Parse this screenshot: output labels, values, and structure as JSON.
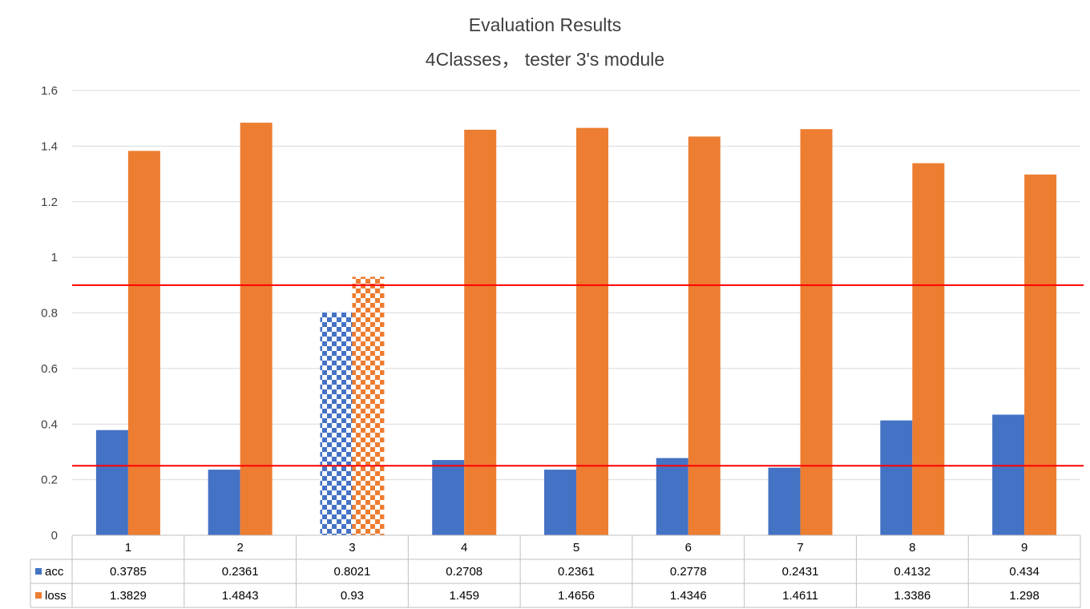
{
  "chart_data": {
    "type": "bar",
    "title": "Evaluation Results",
    "subtitle": "4Classes，  tester 3's module",
    "categories": [
      "1",
      "2",
      "3",
      "4",
      "5",
      "6",
      "7",
      "8",
      "9"
    ],
    "series": [
      {
        "name": "acc",
        "color": "#4472c4",
        "values": [
          0.3785,
          0.2361,
          0.8021,
          0.2708,
          0.2361,
          0.2778,
          0.2431,
          0.4132,
          0.434
        ]
      },
      {
        "name": "loss",
        "color": "#ed7d31",
        "values": [
          1.3829,
          1.4843,
          0.93,
          1.459,
          1.4656,
          1.4346,
          1.4611,
          1.3386,
          1.298
        ]
      }
    ],
    "table_values": {
      "acc": [
        "0.3785",
        "0.2361",
        "0.8021",
        "0.2708",
        "0.2361",
        "0.2778",
        "0.2431",
        "0.4132",
        "0.434"
      ],
      "loss": [
        "1.3829",
        "1.4843",
        "0.93",
        "1.459",
        "1.4656",
        "1.4346",
        "1.4611",
        "1.3386",
        "1.298"
      ]
    },
    "highlighted_category": "3",
    "highlight_pattern": "checkered",
    "ylim": [
      0,
      1.6
    ],
    "yticks": [
      "0",
      "0.2",
      "0.4",
      "0.6",
      "0.8",
      "1",
      "1.2",
      "1.4",
      "1.6"
    ],
    "reference_lines": [
      {
        "y": 0.9,
        "color": "#ff0000"
      },
      {
        "y": 0.25,
        "color": "#ff0000"
      }
    ],
    "grid": true,
    "legend_placement": "data-table-left",
    "gridline_color": "#d9d9d9",
    "table_border_color": "#bfbfbf"
  }
}
